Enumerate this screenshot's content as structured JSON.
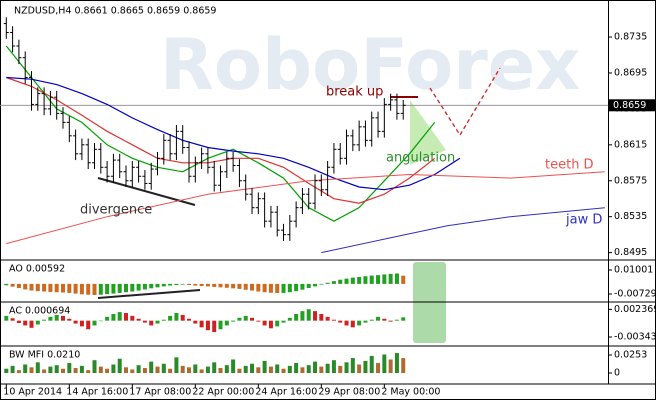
{
  "chart_data": [
    {
      "type": "candlestick",
      "title": "NZDUSD,H4 0.8661 0.8665 0.8659 0.8659",
      "watermark": "RoboForex",
      "categories": [
        "10 Apr 2014",
        null,
        null,
        null,
        null,
        null,
        null,
        null,
        null,
        null,
        "14 Apr 16:00",
        null,
        null,
        null,
        null,
        null,
        null,
        null,
        null,
        null,
        "17 Apr 08:00",
        null,
        null,
        null,
        null,
        null,
        null,
        null,
        null,
        null,
        "22 Apr 00:00",
        null,
        null,
        null,
        null,
        null,
        null,
        null,
        null,
        null,
        "24 Apr 16:00",
        null,
        null,
        null,
        null,
        null,
        null,
        null,
        null,
        null,
        "29 Apr 08:00",
        null,
        null,
        null,
        null,
        null,
        null,
        null,
        null,
        null,
        "2 May 00:00",
        null,
        null,
        null
      ],
      "open": [
        0.875,
        0.874,
        0.8725,
        0.8712,
        0.869,
        0.866,
        0.8672,
        0.8655,
        0.8668,
        0.865,
        0.864,
        0.8625,
        0.8605,
        0.8615,
        0.8595,
        0.861,
        0.859,
        0.858,
        0.8598,
        0.8585,
        0.8575,
        0.859,
        0.858,
        0.8572,
        0.8588,
        0.86,
        0.862,
        0.8605,
        0.863,
        0.8612,
        0.858,
        0.8595,
        0.8605,
        0.859,
        0.857,
        0.8585,
        0.86,
        0.8592,
        0.8575,
        0.856,
        0.8545,
        0.8555,
        0.853,
        0.854,
        0.852,
        0.8515,
        0.853,
        0.8545,
        0.856,
        0.855,
        0.8575,
        0.8565,
        0.859,
        0.861,
        0.86,
        0.8625,
        0.8615,
        0.8635,
        0.862,
        0.8645,
        0.863,
        0.866,
        0.8665,
        0.865
      ],
      "high": [
        0.8757,
        0.8747,
        0.8732,
        0.8719,
        0.8697,
        0.8679,
        0.8679,
        0.8675,
        0.8675,
        0.8657,
        0.8647,
        0.8632,
        0.8622,
        0.8622,
        0.8617,
        0.8617,
        0.8597,
        0.8605,
        0.8605,
        0.8592,
        0.8597,
        0.8597,
        0.8587,
        0.8595,
        0.8607,
        0.8627,
        0.8627,
        0.8637,
        0.8637,
        0.8619,
        0.8602,
        0.8612,
        0.8612,
        0.8597,
        0.8592,
        0.8607,
        0.8607,
        0.8599,
        0.8582,
        0.8567,
        0.8562,
        0.8562,
        0.8547,
        0.8547,
        0.8527,
        0.8537,
        0.8552,
        0.8567,
        0.8567,
        0.8582,
        0.8582,
        0.8597,
        0.8617,
        0.8617,
        0.8632,
        0.8632,
        0.8642,
        0.8642,
        0.8652,
        0.8652,
        0.8667,
        0.8672,
        0.8672,
        0.8665
      ],
      "low": [
        0.8733,
        0.8718,
        0.8705,
        0.8683,
        0.8653,
        0.8653,
        0.8648,
        0.8648,
        0.8643,
        0.8633,
        0.8618,
        0.8598,
        0.8598,
        0.8588,
        0.8588,
        0.8583,
        0.8573,
        0.8573,
        0.8578,
        0.8568,
        0.8568,
        0.8573,
        0.8565,
        0.8565,
        0.8581,
        0.8593,
        0.8598,
        0.8598,
        0.8605,
        0.8573,
        0.8573,
        0.8588,
        0.8583,
        0.8563,
        0.8563,
        0.8578,
        0.8585,
        0.8568,
        0.8553,
        0.8538,
        0.8538,
        0.8523,
        0.8523,
        0.8513,
        0.8508,
        0.8508,
        0.8523,
        0.8538,
        0.8543,
        0.8543,
        0.8558,
        0.8558,
        0.8583,
        0.8593,
        0.8593,
        0.8608,
        0.8608,
        0.8613,
        0.8613,
        0.8623,
        0.8623,
        0.8653,
        0.8643,
        0.8643
      ],
      "close": [
        0.874,
        0.8725,
        0.8712,
        0.869,
        0.866,
        0.8672,
        0.8655,
        0.8668,
        0.865,
        0.864,
        0.8625,
        0.8605,
        0.8615,
        0.8595,
        0.861,
        0.859,
        0.858,
        0.8598,
        0.8585,
        0.8575,
        0.859,
        0.858,
        0.8572,
        0.8588,
        0.86,
        0.862,
        0.8605,
        0.863,
        0.8612,
        0.858,
        0.8595,
        0.8605,
        0.859,
        0.857,
        0.8585,
        0.86,
        0.8592,
        0.8575,
        0.856,
        0.8545,
        0.8555,
        0.853,
        0.854,
        0.852,
        0.8515,
        0.853,
        0.8545,
        0.856,
        0.855,
        0.8575,
        0.8565,
        0.859,
        0.861,
        0.86,
        0.8625,
        0.8615,
        0.8635,
        0.862,
        0.8645,
        0.863,
        0.866,
        0.8665,
        0.865,
        0.8659
      ],
      "color": "#000000",
      "lines": [
        {
          "color": "#00a000",
          "x": [
            0,
            4,
            8,
            12,
            16,
            20,
            24,
            28,
            32,
            36,
            40,
            44,
            48,
            52,
            56,
            60,
            64,
            68
          ],
          "values": [
            0.8725,
            0.869,
            0.8655,
            0.864,
            0.8615,
            0.86,
            0.859,
            0.8585,
            0.86,
            0.861,
            0.8595,
            0.8578,
            0.8545,
            0.853,
            0.8545,
            0.8575,
            0.8605,
            0.864
          ]
        },
        {
          "color": "#e03030",
          "x": [
            0,
            4,
            8,
            12,
            16,
            20,
            24,
            28,
            32,
            36,
            40,
            44,
            48,
            52,
            56,
            60,
            64,
            68
          ],
          "values": [
            0.869,
            0.868,
            0.8665,
            0.8648,
            0.863,
            0.8615,
            0.86,
            0.8595,
            0.8595,
            0.86,
            0.86,
            0.859,
            0.8572,
            0.8555,
            0.855,
            0.856,
            0.8578,
            0.86
          ]
        },
        {
          "color": "#0000c0",
          "x": [
            0,
            4,
            8,
            12,
            16,
            20,
            24,
            28,
            32,
            36,
            40,
            44,
            48,
            52,
            56,
            60,
            64,
            68,
            72
          ],
          "values": [
            0.869,
            0.8688,
            0.8682,
            0.8672,
            0.866,
            0.8645,
            0.8632,
            0.862,
            0.8612,
            0.8608,
            0.8605,
            0.86,
            0.859,
            0.8578,
            0.8568,
            0.8565,
            0.857,
            0.8582,
            0.86
          ]
        },
        {
          "name": "teeth D",
          "color": "#f05050",
          "x": [
            0,
            16,
            32,
            48,
            64,
            80,
            95
          ],
          "values": [
            0.8505,
            0.8535,
            0.856,
            0.8575,
            0.8582,
            0.8578,
            0.8585
          ]
        },
        {
          "name": "jaw D",
          "color": "#3030c0",
          "x": [
            50,
            60,
            70,
            80,
            95
          ],
          "values": [
            0.8495,
            0.851,
            0.8525,
            0.8535,
            0.8545
          ]
        }
      ],
      "last_price": 0.8659,
      "annotations": [
        "break up",
        "angulation",
        "divergence"
      ],
      "xlim": [
        -1,
        95.5
      ],
      "ylim": [
        0.8489,
        0.8774
      ],
      "yticks": [
        0.8495,
        0.8535,
        0.8575,
        0.8615,
        0.8655,
        0.8695,
        0.8735
      ]
    },
    {
      "type": "bar",
      "title": "AO 0.00592",
      "up_color": "#22a022",
      "down_color": "#cc6a20",
      "values": [
        -0.001,
        -0.002,
        -0.003,
        -0.004,
        -0.0048,
        -0.0052,
        -0.0055,
        -0.0058,
        -0.006,
        -0.0062,
        -0.0065,
        -0.007,
        -0.0075,
        -0.0078,
        -0.008,
        -0.0078,
        -0.0074,
        -0.007,
        -0.0065,
        -0.006,
        -0.0055,
        -0.0048,
        -0.004,
        -0.0032,
        -0.0025,
        -0.0018,
        -0.0012,
        -0.0008,
        -0.0005,
        -0.0008,
        -0.0012,
        -0.0015,
        -0.0018,
        -0.0022,
        -0.0025,
        -0.0028,
        -0.0032,
        -0.0036,
        -0.0042,
        -0.0048,
        -0.0055,
        -0.006,
        -0.0064,
        -0.0066,
        -0.0065,
        -0.006,
        -0.0052,
        -0.0042,
        -0.003,
        -0.0018,
        -0.0005,
        0.0008,
        0.002,
        0.003,
        0.0038,
        0.0045,
        0.005,
        0.0055,
        0.006,
        0.0063,
        0.0068,
        0.0072,
        0.0075,
        0.00592
      ],
      "ylim": [
        -0.01162,
        0.01578
      ],
      "yticks": [
        -0.00729,
        0.01001
      ]
    },
    {
      "type": "bar",
      "title": "AC 0.000694",
      "up_color": "#22a022",
      "down_color": "#d02020",
      "values": [
        0.001,
        0.0005,
        -0.0005,
        -0.001,
        -0.0015,
        -0.0008,
        0.0002,
        0.0008,
        0.0012,
        0.001,
        0.0004,
        -0.0006,
        -0.0012,
        -0.0018,
        -0.001,
        0.0,
        0.0008,
        0.0014,
        0.0018,
        0.0016,
        0.001,
        0.0004,
        -0.0004,
        -0.001,
        -0.0006,
        0.0002,
        0.001,
        0.0016,
        0.0012,
        0.0004,
        -0.0006,
        -0.0014,
        -0.002,
        -0.0024,
        -0.0018,
        -0.001,
        -0.0002,
        0.0006,
        0.001,
        0.0006,
        -0.0002,
        -0.001,
        -0.0016,
        -0.0012,
        -0.0004,
        0.0006,
        0.0014,
        0.002,
        0.0024,
        0.002,
        0.0014,
        0.0008,
        0.0002,
        -0.0004,
        -0.001,
        -0.0014,
        -0.001,
        -0.0004,
        0.0002,
        0.0008,
        0.0004,
        -0.0002,
        0.0002,
        0.000694
      ],
      "ylim": [
        -0.0049,
        0.0035
      ],
      "yticks": [
        -0.00343,
        0.002369
      ]
    },
    {
      "type": "bar",
      "title": "BW MFI 0.0210",
      "up_color": "#2a8a2a",
      "down_color": "#b06a30",
      "values": [
        0.006,
        0.01,
        0.004,
        0.012,
        0.008,
        0.015,
        0.005,
        0.009,
        0.011,
        0.006,
        0.014,
        0.007,
        0.01,
        0.004,
        0.018,
        0.009,
        0.006,
        0.012,
        0.02,
        0.008,
        0.005,
        0.011,
        0.007,
        0.016,
        0.009,
        0.013,
        0.006,
        0.022,
        0.01,
        0.008,
        0.012,
        0.005,
        0.009,
        0.015,
        0.007,
        0.011,
        0.019,
        0.006,
        0.01,
        0.013,
        0.008,
        0.017,
        0.009,
        0.012,
        0.006,
        0.01,
        0.014,
        0.008,
        0.011,
        0.016,
        0.009,
        0.013,
        0.018,
        0.01,
        0.015,
        0.021,
        0.012,
        0.017,
        0.024,
        0.014,
        0.026,
        0.019,
        0.028,
        0.021
      ],
      "ylim": [
        -0.0126,
        0.0351
      ],
      "yticks": [
        0,
        0.0253
      ]
    }
  ]
}
